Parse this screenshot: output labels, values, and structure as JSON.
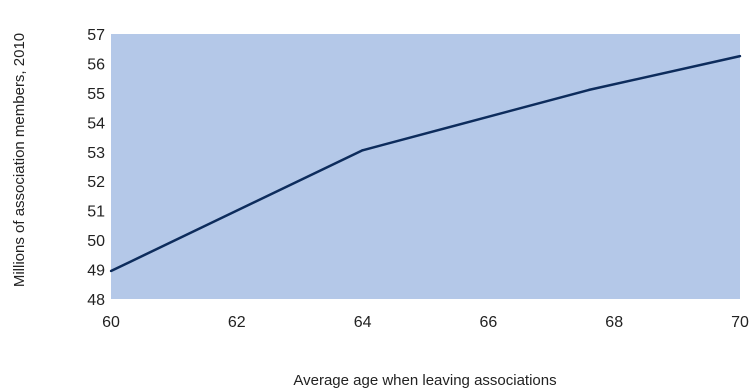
{
  "chart_data": {
    "type": "area",
    "title": "",
    "xlabel": "Average age when leaving associations",
    "ylabel": "Millions of  association members, 2010",
    "xlim": [
      60,
      70
    ],
    "ylim": [
      48,
      57
    ],
    "x_ticks": [
      60,
      62,
      64,
      66,
      68,
      70
    ],
    "y_ticks": [
      48,
      49,
      50,
      51,
      52,
      53,
      54,
      55,
      56,
      57
    ],
    "grid": false,
    "legend": "none",
    "series": [
      {
        "x": [
          60,
          64,
          67.6,
          70
        ],
        "values": [
          48.95,
          53.05,
          55.1,
          56.25
        ]
      }
    ],
    "colors": {
      "plot_background": "#b4c8e8",
      "line": "#0d2c5c"
    }
  }
}
